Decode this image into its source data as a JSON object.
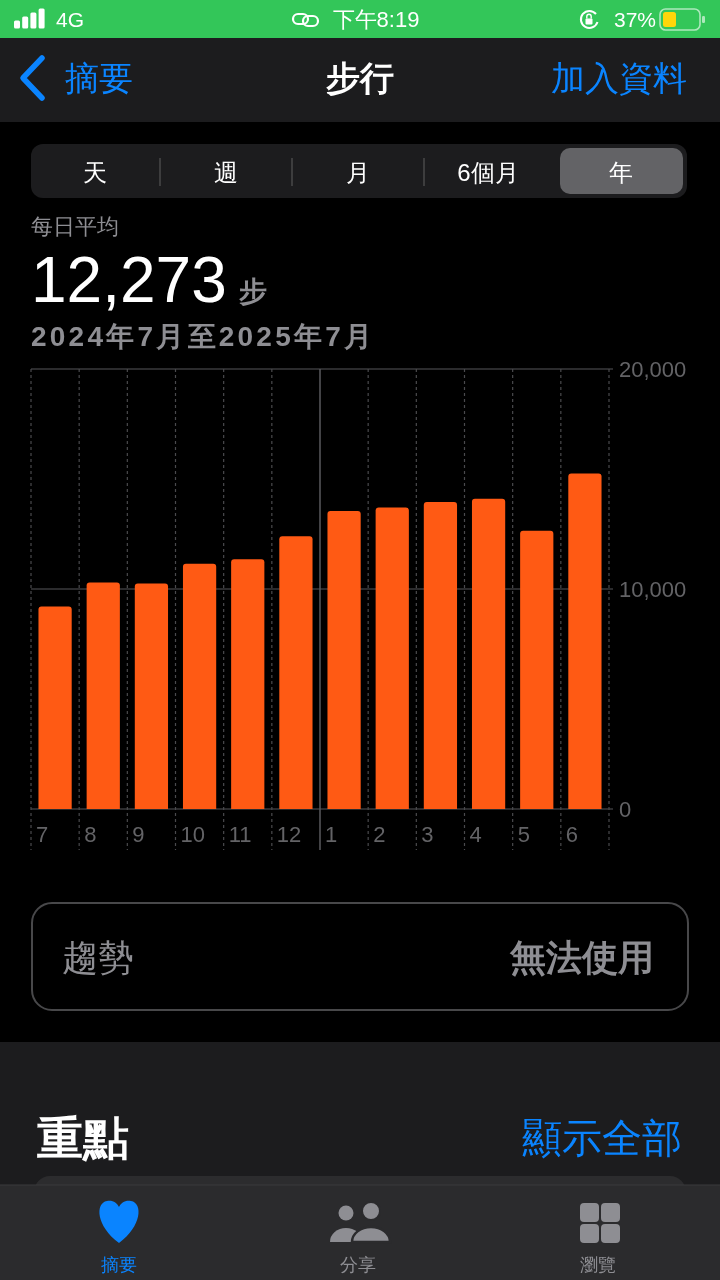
{
  "chart_data": {
    "type": "bar",
    "title": "步行",
    "subtitle": "2024年7月至2025年7月",
    "categories": [
      "7",
      "8",
      "9",
      "10",
      "11",
      "12",
      "1",
      "2",
      "3",
      "4",
      "5",
      "6"
    ],
    "values": [
      9200,
      10300,
      10250,
      11150,
      11350,
      12400,
      13550,
      13700,
      13950,
      14100,
      12650,
      15250
    ],
    "color": "#ff5a14",
    "ylim": [
      0,
      20000
    ],
    "yticks": [
      0,
      {
        "value": 10000,
        "label": "10,000"
      },
      {
        "value": 20000,
        "label": "20,000"
      }
    ],
    "grid": true,
    "ref_lines": [
      {
        "axis": "x",
        "value": "1",
        "line_style": "solid",
        "color": "#5a5a5e"
      }
    ],
    "annotations": [
      "4G",
      "下午8:19",
      "37%",
      "摘要",
      "加入資料",
      "天",
      "週",
      "月",
      "6個月",
      "年",
      "每日平均",
      "12,273",
      "步",
      "趨勢",
      "無法使用",
      "重點",
      "顯示全部",
      "摘要",
      "分享",
      "瀏覽"
    ]
  }
}
